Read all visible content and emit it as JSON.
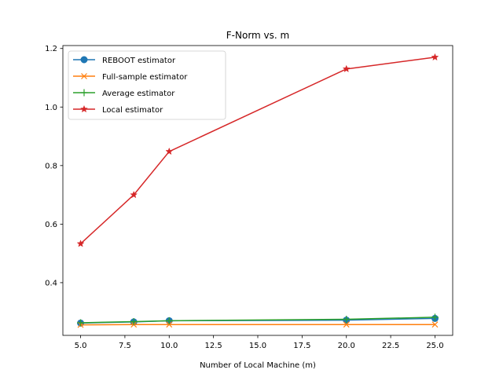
{
  "chart_data": {
    "type": "line",
    "title": "F-Norm vs. m",
    "xlabel": "Number of Local Machine (m)",
    "ylabel": "",
    "x": [
      5,
      8,
      10,
      20,
      25
    ],
    "xlim": [
      4,
      26
    ],
    "ylim": [
      0.22,
      1.21
    ],
    "xticks": [
      5.0,
      7.5,
      10.0,
      12.5,
      15.0,
      17.5,
      20.0,
      22.5,
      25.0
    ],
    "xtick_labels": [
      "5.0",
      "7.5",
      "10.0",
      "12.5",
      "15.0",
      "17.5",
      "20.0",
      "22.5",
      "25.0"
    ],
    "yticks": [
      0.4,
      0.6,
      0.8,
      1.0,
      1.2
    ],
    "ytick_labels": [
      "0.4",
      "0.6",
      "0.8",
      "1.0",
      "1.2"
    ],
    "grid": false,
    "legend_position": "top-left",
    "series": [
      {
        "name": "REBOOT estimator",
        "values": [
          0.262,
          0.266,
          0.27,
          0.272,
          0.278
        ],
        "color": "#1f77b4",
        "marker": "circle"
      },
      {
        "name": "Full-sample estimator",
        "values": [
          0.256,
          0.257,
          0.257,
          0.257,
          0.257
        ],
        "color": "#ff7f0e",
        "marker": "x"
      },
      {
        "name": "Average estimator",
        "values": [
          0.263,
          0.267,
          0.27,
          0.275,
          0.282
        ],
        "color": "#2ca02c",
        "marker": "plus"
      },
      {
        "name": "Local estimator",
        "values": [
          0.533,
          0.7,
          0.848,
          1.13,
          1.17
        ],
        "color": "#d62728",
        "marker": "star"
      }
    ]
  }
}
